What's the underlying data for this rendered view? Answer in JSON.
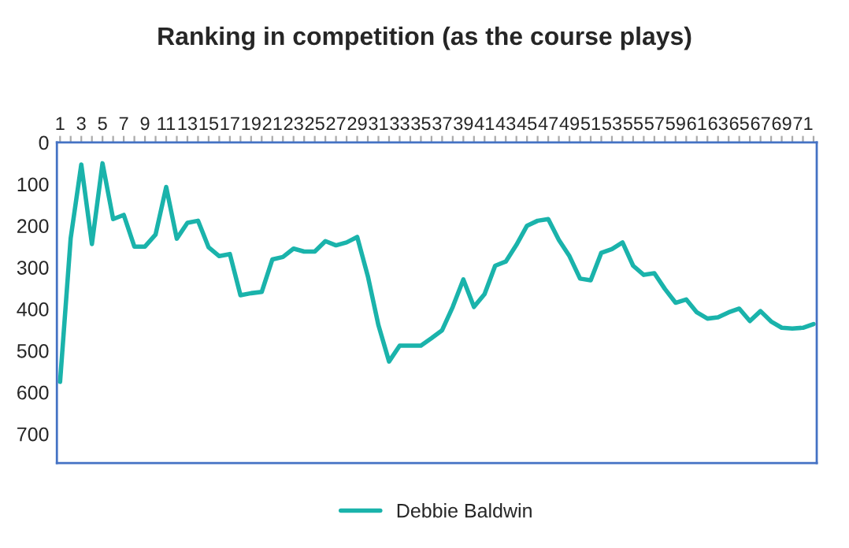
{
  "chart_data": {
    "type": "line",
    "title": "Ranking in competition (as the course plays)",
    "categories": [
      "1",
      null,
      "3",
      null,
      "5",
      null,
      "7",
      null,
      "9",
      null,
      "11",
      null,
      "13",
      null,
      "15",
      null,
      "17",
      null,
      "19",
      null,
      "21",
      null,
      "23",
      null,
      "25",
      null,
      "27",
      null,
      "29",
      null,
      "31",
      null,
      "33",
      null,
      "35",
      null,
      "37",
      null,
      "39",
      null,
      "41",
      null,
      "43",
      null,
      "45",
      null,
      "47",
      null,
      "49",
      null,
      "51",
      null,
      "53",
      null,
      "55",
      null,
      "57",
      null,
      "59",
      null,
      "61",
      null,
      "63",
      null,
      "65",
      null,
      "67",
      null,
      "69",
      null,
      "71",
      null
    ],
    "series": [
      {
        "name": "Debbie Baldwin",
        "color": "#1ab3ab",
        "values": [
          575,
          230,
          53,
          244,
          50,
          184,
          174,
          250,
          250,
          221,
          107,
          231,
          193,
          188,
          252,
          273,
          268,
          367,
          362,
          359,
          281,
          275,
          255,
          262,
          262,
          237,
          247,
          240,
          227,
          321,
          439,
          526,
          488,
          488,
          488,
          470,
          451,
          395,
          329,
          395,
          364,
          296,
          286,
          246,
          200,
          188,
          184,
          234,
          273,
          327,
          331,
          265,
          256,
          240,
          296,
          318,
          314,
          352,
          385,
          377,
          408,
          423,
          420,
          408,
          399,
          429,
          405,
          430,
          445,
          447,
          445,
          436
        ]
      }
    ],
    "ylim": [
      770,
      0
    ],
    "yticks": [
      0,
      100,
      200,
      300,
      400,
      500,
      600,
      700
    ],
    "grid": false,
    "legend": "bottom",
    "marker": "none",
    "line_style": "solid"
  }
}
